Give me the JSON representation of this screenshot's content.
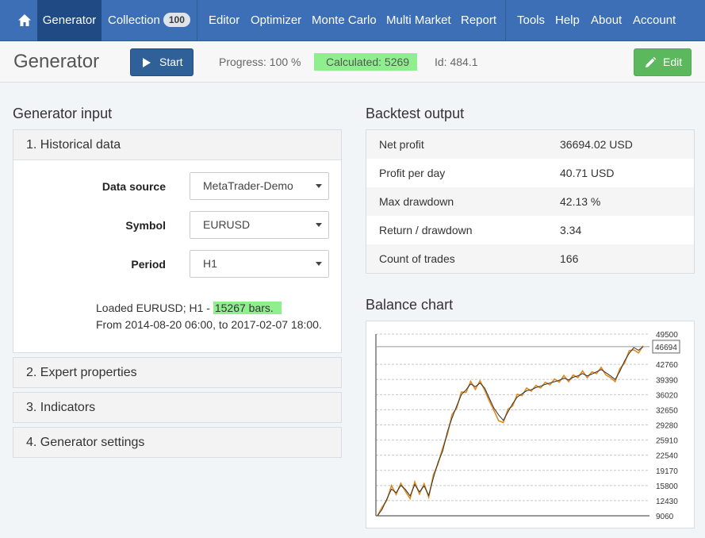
{
  "nav": {
    "home_icon": "home-icon",
    "items": [
      {
        "label": "Generator",
        "active": true
      },
      {
        "label": "Collection",
        "badge": "100"
      },
      {
        "label": "Editor"
      },
      {
        "label": "Optimizer"
      },
      {
        "label": "Monte Carlo"
      },
      {
        "label": "Multi Market"
      },
      {
        "label": "Report"
      },
      {
        "label": "Tools"
      },
      {
        "label": "Help"
      },
      {
        "label": "About"
      },
      {
        "label": "Account"
      }
    ]
  },
  "toolbar": {
    "title": "Generator",
    "start_label": "Start",
    "progress": "Progress: 100 %",
    "calculated": "Calculated: 5269",
    "id": "Id: 484.1",
    "edit_label": "Edit"
  },
  "left": {
    "section_title": "Generator input",
    "historical_data": {
      "title": "1. Historical data",
      "data_source_label": "Data source",
      "data_source_value": "MetaTrader-Demo",
      "symbol_label": "Symbol",
      "symbol_value": "EURUSD",
      "period_label": "Period",
      "period_value": "H1",
      "loaded_prefix": "Loaded EURUSD; H1 - ",
      "loaded_bars": "15267 bars.",
      "loaded_range": "From 2014-08-20 06:00, to 2017-02-07 18:00."
    },
    "collapsed_panels": [
      "2. Expert properties",
      "3. Indicators",
      "4. Generator settings"
    ]
  },
  "right": {
    "backtest_title": "Backtest output",
    "backtest": [
      {
        "key": "Net profit",
        "value": "36694.02 USD"
      },
      {
        "key": "Profit per day",
        "value": "40.71 USD"
      },
      {
        "key": "Max drawdown",
        "value": "42.13 %"
      },
      {
        "key": "Return / drawdown",
        "value": "3.34"
      },
      {
        "key": "Count of trades",
        "value": "166"
      }
    ],
    "chart_title": "Balance chart"
  },
  "colors": {
    "nav_bg": "#3c6fb5",
    "nav_active": "#1f4a84",
    "start_btn": "#2f6198",
    "edit_btn": "#5cb85c",
    "highlight": "#8fef8f",
    "equity_line": "#e08a1e",
    "balance_line": "#333333"
  },
  "chart_data": {
    "type": "line",
    "title": "",
    "xlabel": "",
    "ylabel": "",
    "ylim": [
      9060,
      49500
    ],
    "y_ticks": [
      49500,
      42760,
      39390,
      36020,
      32650,
      29280,
      25910,
      22540,
      19170,
      15800,
      12430,
      9060
    ],
    "current_value_label": "46694",
    "grid": true,
    "series": [
      {
        "color": "#333333",
        "values": [
          9060,
          10500,
          12800,
          15000,
          14200,
          15800,
          14900,
          13500,
          16000,
          14400,
          15700,
          13600,
          17500,
          21000,
          23500,
          27800,
          30800,
          33500,
          36000,
          37100,
          38400,
          37800,
          38600,
          37500,
          35200,
          33000,
          31500,
          30300,
          32200,
          34000,
          35500,
          36200,
          36900,
          37100,
          37600,
          37900,
          38300,
          38600,
          38900,
          39200,
          39700,
          39300,
          39900,
          40200,
          40700,
          40200,
          40600,
          41100,
          41600,
          40900,
          40200,
          39400,
          41200,
          43500,
          45200,
          46500,
          45900,
          46694
        ]
      },
      {
        "color": "#e08a1e",
        "values": [
          9060,
          11000,
          12500,
          15800,
          13800,
          16300,
          14500,
          12900,
          16600,
          13900,
          16200,
          13200,
          18200,
          20600,
          24200,
          27200,
          31600,
          33000,
          36600,
          36500,
          39000,
          37200,
          39100,
          37000,
          34600,
          32500,
          30200,
          29800,
          32800,
          33500,
          36100,
          35800,
          37500,
          36800,
          38100,
          37500,
          38800,
          38200,
          39500,
          38800,
          40300,
          38900,
          40400,
          39800,
          41300,
          39800,
          41100,
          40700,
          42100,
          40400,
          39800,
          38900,
          41800,
          43000,
          45800,
          46000,
          45300,
          46900
        ]
      }
    ]
  }
}
